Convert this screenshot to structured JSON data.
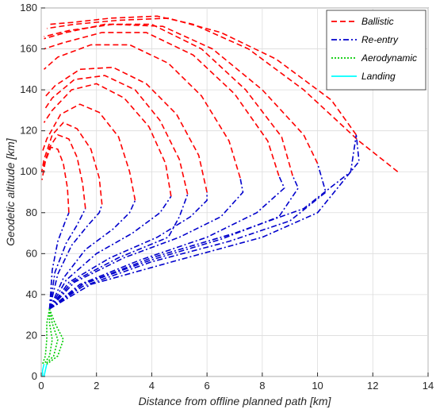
{
  "chart_data": {
    "type": "line",
    "xlabel": "Distance from offline planned path [km]",
    "ylabel": "Geodetic altitude [km]",
    "xlim": [
      0,
      14
    ],
    "ylim": [
      0,
      180
    ],
    "x_ticks": [
      0,
      2,
      4,
      6,
      8,
      10,
      12,
      14
    ],
    "y_ticks": [
      0,
      20,
      40,
      60,
      80,
      100,
      120,
      140,
      160,
      180
    ],
    "grid": true,
    "legend_position": "top-right",
    "series": [
      {
        "name": "Ballistic",
        "color": "#ff0000",
        "dash": "dashed",
        "trajectories": [
          [
            [
              12.9,
              100
            ],
            [
              11.5,
              115
            ],
            [
              9.5,
              140
            ],
            [
              7.5,
              160
            ],
            [
              5.5,
              172
            ],
            [
              4.2,
              176
            ],
            [
              2.5,
              175
            ],
            [
              1.2,
              173
            ],
            [
              0.3,
              172
            ]
          ],
          [
            [
              11.4,
              118
            ],
            [
              10.5,
              135
            ],
            [
              8.5,
              155
            ],
            [
              6.5,
              168
            ],
            [
              4.6,
              175
            ],
            [
              2.8,
              174
            ],
            [
              1.2,
              172
            ],
            [
              0.2,
              170
            ]
          ],
          [
            [
              10.0,
              104
            ],
            [
              9.5,
              118
            ],
            [
              8.0,
              140
            ],
            [
              6.2,
              160
            ],
            [
              4.4,
              171
            ],
            [
              2.6,
              172
            ],
            [
              1.0,
              169
            ],
            [
              0.1,
              166
            ]
          ],
          [
            [
              8.6,
              98
            ],
            [
              8.2,
              115
            ],
            [
              7.0,
              138
            ],
            [
              5.5,
              157
            ],
            [
              3.8,
              168
            ],
            [
              2.2,
              168
            ],
            [
              0.8,
              163
            ],
            [
              0.1,
              160
            ]
          ],
          [
            [
              7.2,
              97
            ],
            [
              6.8,
              115
            ],
            [
              5.8,
              137
            ],
            [
              4.6,
              153
            ],
            [
              3.2,
              162
            ],
            [
              1.8,
              162
            ],
            [
              0.6,
              156
            ],
            [
              0.1,
              150
            ]
          ],
          [
            [
              6.0,
              90
            ],
            [
              5.7,
              108
            ],
            [
              4.9,
              128
            ],
            [
              3.8,
              143
            ],
            [
              2.6,
              151
            ],
            [
              1.4,
              150
            ],
            [
              0.5,
              142
            ],
            [
              0.1,
              136
            ]
          ],
          [
            [
              4.7,
              88
            ],
            [
              4.5,
              104
            ],
            [
              3.9,
              122
            ],
            [
              3.0,
              136
            ],
            [
              2.0,
              143
            ],
            [
              1.1,
              140
            ],
            [
              0.4,
              130
            ],
            [
              0.1,
              124
            ]
          ],
          [
            [
              3.4,
              86
            ],
            [
              3.2,
              100
            ],
            [
              2.8,
              117
            ],
            [
              2.1,
              129
            ],
            [
              1.4,
              133
            ],
            [
              0.7,
              128
            ],
            [
              0.2,
              116
            ],
            [
              0.05,
              110
            ]
          ],
          [
            [
              2.2,
              84
            ],
            [
              2.1,
              97
            ],
            [
              1.8,
              111
            ],
            [
              1.3,
              121
            ],
            [
              0.8,
              124
            ],
            [
              0.4,
              118
            ],
            [
              0.1,
              106
            ],
            [
              0.02,
              100
            ]
          ],
          [
            [
              1.0,
              80
            ],
            [
              0.95,
              92
            ],
            [
              0.8,
              104
            ],
            [
              0.6,
              111
            ],
            [
              0.35,
              112
            ],
            [
              0.15,
              105
            ],
            [
              0.03,
              96
            ]
          ],
          [
            [
              9.1,
              98
            ],
            [
              8.7,
              117
            ],
            [
              7.4,
              140
            ],
            [
              5.8,
              160
            ],
            [
              4.0,
              172
            ],
            [
              2.3,
              172
            ],
            [
              0.9,
              168
            ],
            [
              0.1,
              165
            ]
          ],
          [
            [
              5.3,
              89
            ],
            [
              5.0,
              106
            ],
            [
              4.3,
              125
            ],
            [
              3.4,
              140
            ],
            [
              2.3,
              147
            ],
            [
              1.2,
              145
            ],
            [
              0.4,
              136
            ],
            [
              0.1,
              130
            ]
          ],
          [
            [
              1.6,
              82
            ],
            [
              1.5,
              94
            ],
            [
              1.3,
              107
            ],
            [
              1.0,
              116
            ],
            [
              0.6,
              118
            ],
            [
              0.3,
              112
            ],
            [
              0.05,
              101
            ]
          ]
        ]
      },
      {
        "name": "Re-entry",
        "color": "#0000cc",
        "dash": "dashdot",
        "trajectories": [
          [
            [
              0.3,
              33
            ],
            [
              1.5,
              45
            ],
            [
              4.0,
              58
            ],
            [
              7.0,
              70
            ],
            [
              9.5,
              82
            ],
            [
              11.2,
              100
            ],
            [
              11.4,
              118
            ]
          ],
          [
            [
              0.3,
              33
            ],
            [
              1.5,
              44
            ],
            [
              4.0,
              56
            ],
            [
              6.8,
              66
            ],
            [
              9.0,
              76
            ],
            [
              10.3,
              90
            ],
            [
              10.0,
              104
            ]
          ],
          [
            [
              0.3,
              33
            ],
            [
              1.4,
              45
            ],
            [
              3.6,
              57
            ],
            [
              6.0,
              68
            ],
            [
              7.8,
              80
            ],
            [
              8.8,
              92
            ],
            [
              8.6,
              98
            ]
          ],
          [
            [
              0.3,
              33
            ],
            [
              1.2,
              46
            ],
            [
              3.0,
              58
            ],
            [
              5.0,
              68
            ],
            [
              6.5,
              78
            ],
            [
              7.3,
              90
            ],
            [
              7.2,
              97
            ]
          ],
          [
            [
              0.3,
              33
            ],
            [
              1.0,
              46
            ],
            [
              2.5,
              58
            ],
            [
              4.2,
              68
            ],
            [
              5.4,
              78
            ],
            [
              6.0,
              86
            ],
            [
              6.0,
              90
            ]
          ],
          [
            [
              0.3,
              33
            ],
            [
              0.9,
              47
            ],
            [
              2.0,
              60
            ],
            [
              3.3,
              70
            ],
            [
              4.3,
              80
            ],
            [
              4.7,
              88
            ]
          ],
          [
            [
              0.3,
              33
            ],
            [
              0.8,
              48
            ],
            [
              1.6,
              62
            ],
            [
              2.6,
              72
            ],
            [
              3.2,
              80
            ],
            [
              3.4,
              86
            ]
          ],
          [
            [
              0.3,
              33
            ],
            [
              0.6,
              50
            ],
            [
              1.1,
              64
            ],
            [
              1.7,
              74
            ],
            [
              2.1,
              80
            ],
            [
              2.2,
              84
            ]
          ],
          [
            [
              0.3,
              33
            ],
            [
              0.4,
              52
            ],
            [
              0.6,
              66
            ],
            [
              0.85,
              75
            ],
            [
              1.0,
              80
            ]
          ],
          [
            [
              0.3,
              33
            ],
            [
              1.5,
              45
            ],
            [
              4.0,
              57
            ],
            [
              6.5,
              67
            ],
            [
              8.6,
              78
            ],
            [
              9.3,
              92
            ],
            [
              9.1,
              98
            ]
          ],
          [
            [
              0.3,
              33
            ],
            [
              1.1,
              46
            ],
            [
              2.8,
              58
            ],
            [
              4.6,
              68
            ],
            [
              5.0,
              78
            ],
            [
              5.3,
              89
            ]
          ],
          [
            [
              0.3,
              33
            ],
            [
              0.5,
              51
            ],
            [
              0.9,
              65
            ],
            [
              1.3,
              74
            ],
            [
              1.6,
              82
            ]
          ],
          [
            [
              0.3,
              33
            ],
            [
              1.8,
              45
            ],
            [
              5.0,
              57
            ],
            [
              8.0,
              68
            ],
            [
              10.0,
              80
            ],
            [
              11.5,
              105
            ],
            [
              11.4,
              118
            ]
          ]
        ]
      },
      {
        "name": "Aerodynamic",
        "color": "#00cc00",
        "dash": "dotted",
        "trajectories": [
          [
            [
              0.3,
              33
            ],
            [
              0.5,
              26
            ],
            [
              0.8,
              18
            ],
            [
              0.6,
              10
            ],
            [
              0.2,
              6
            ]
          ],
          [
            [
              0.3,
              33
            ],
            [
              0.4,
              26
            ],
            [
              0.6,
              18
            ],
            [
              0.45,
              10
            ],
            [
              0.15,
              6
            ]
          ],
          [
            [
              0.3,
              33
            ],
            [
              0.3,
              26
            ],
            [
              0.4,
              18
            ],
            [
              0.3,
              10
            ],
            [
              0.1,
              6
            ]
          ],
          [
            [
              0.3,
              33
            ],
            [
              0.2,
              26
            ],
            [
              0.2,
              18
            ],
            [
              0.15,
              10
            ],
            [
              0.05,
              6
            ]
          ]
        ]
      },
      {
        "name": "Landing",
        "color": "#00ffff",
        "dash": "solid",
        "trajectories": [
          [
            [
              0.2,
              6
            ],
            [
              0.15,
              3
            ],
            [
              0.1,
              0
            ]
          ],
          [
            [
              0.1,
              6
            ],
            [
              0.05,
              3
            ],
            [
              0.05,
              0
            ]
          ]
        ]
      }
    ]
  }
}
